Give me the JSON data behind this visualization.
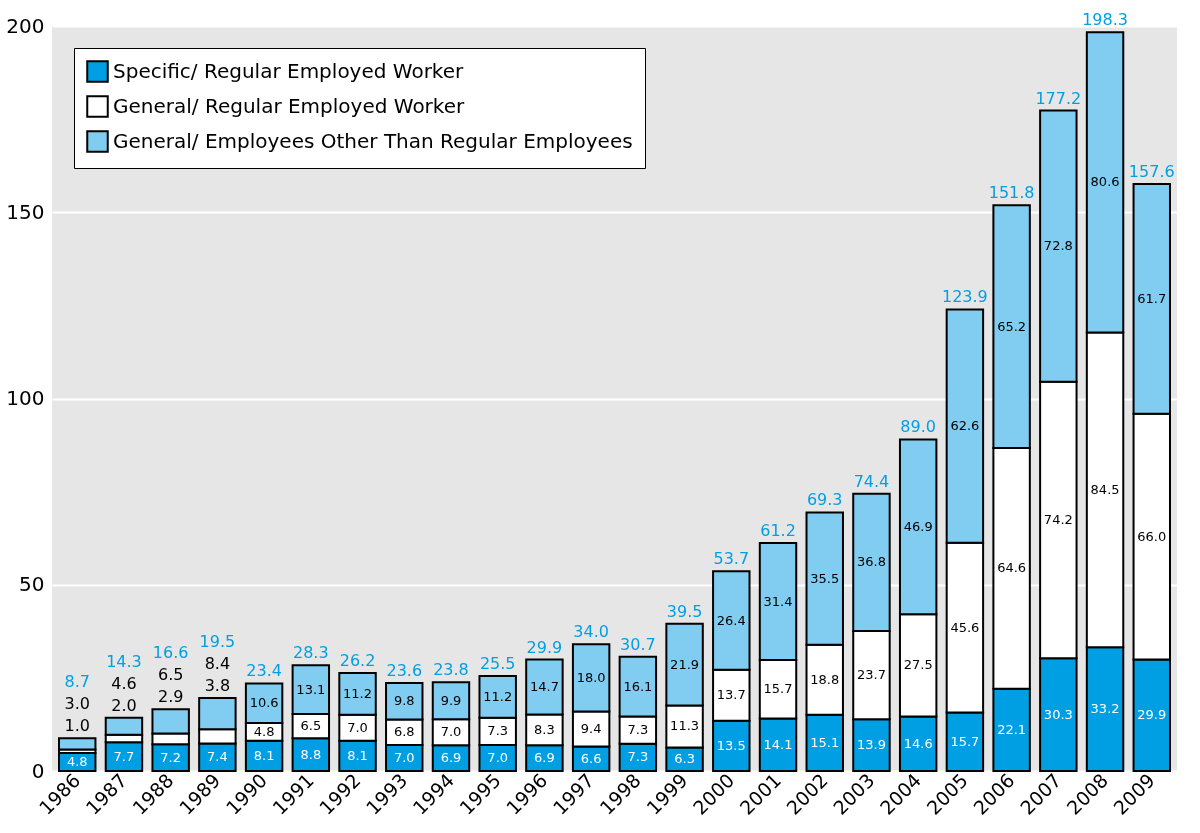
{
  "chart_data": {
    "type": "bar",
    "stacked": true,
    "categories": [
      "1986",
      "1987",
      "1988",
      "1989",
      "1990",
      "1991",
      "1992",
      "1993",
      "1994",
      "1995",
      "1996",
      "1997",
      "1998",
      "1999",
      "2000",
      "2001",
      "2002",
      "2003",
      "2004",
      "2005",
      "2006",
      "2007",
      "2008",
      "2009"
    ],
    "series": [
      {
        "name": "Specific/ Regular Employed Worker",
        "color": "#009fe3",
        "values": [
          4.8,
          7.7,
          7.2,
          7.4,
          8.1,
          8.8,
          8.1,
          7.0,
          6.9,
          7.0,
          6.9,
          6.6,
          7.3,
          6.3,
          13.5,
          14.1,
          15.1,
          13.9,
          14.6,
          15.7,
          22.1,
          30.3,
          33.2,
          29.9
        ],
        "value_labels": [
          "4.8",
          "7.7",
          "7.2",
          "7.4",
          "8.1",
          "8.8",
          "8.1",
          "7.0",
          "6.9",
          "7.0",
          "6.9",
          "6.6",
          "7.3",
          "6.3",
          "13.5",
          "14.1",
          "15.1",
          "13.9",
          "14.6",
          "15.7",
          "22.1",
          "30.3",
          "33.2",
          "29.9"
        ]
      },
      {
        "name": "General/ Regular Employed Worker",
        "color": "#ffffff",
        "values": [
          1.0,
          2.0,
          2.9,
          3.8,
          4.8,
          6.5,
          7.0,
          6.8,
          7.0,
          7.3,
          8.3,
          9.4,
          7.3,
          11.3,
          13.7,
          15.7,
          18.8,
          23.7,
          27.5,
          45.6,
          64.6,
          74.2,
          84.5,
          66.0
        ],
        "value_labels": [
          "1.0",
          "2.0",
          "2.9",
          "3.8",
          "4.8",
          "6.5",
          "7.0",
          "6.8",
          "7.0",
          "7.3",
          "8.3",
          "9.4",
          "7.3",
          "11.3",
          "13.7",
          "15.7",
          "18.8",
          "23.7",
          "27.5",
          "45.6",
          "64.6",
          "74.2",
          "84.5",
          "66.0"
        ]
      },
      {
        "name": "General/ Employees Other Than Regular Employees",
        "color": "#80cdf1",
        "values": [
          3.0,
          4.6,
          6.5,
          8.4,
          10.6,
          13.1,
          11.2,
          9.8,
          9.9,
          11.2,
          14.7,
          18.0,
          16.1,
          21.9,
          26.4,
          31.4,
          35.5,
          36.8,
          46.9,
          62.6,
          65.2,
          72.8,
          80.6,
          61.7
        ],
        "value_labels": [
          "3.0",
          "4.6",
          "6.5",
          "8.4",
          "10.6",
          "13.1",
          "11.2",
          "9.8",
          "9.9",
          "11.2",
          "14.7",
          "18.0",
          "16.1",
          "21.9",
          "26.4",
          "31.4",
          "35.5",
          "36.8",
          "46.9",
          "62.6",
          "65.2",
          "72.8",
          "80.6",
          "61.7"
        ]
      }
    ],
    "totals": [
      "8.7",
      "14.3",
      "16.6",
      "19.5",
      "23.4",
      "28.3",
      "26.2",
      "23.6",
      "23.8",
      "25.5",
      "29.9",
      "34.0",
      "30.7",
      "39.5",
      "53.7",
      "61.2",
      "69.3",
      "74.4",
      "89.0",
      "123.9",
      "151.8",
      "177.2",
      "198.3",
      "157.6"
    ],
    "ylim": [
      0,
      200
    ],
    "yticks": [
      0,
      50,
      100,
      150,
      200
    ],
    "grid": "y",
    "legend": "top left"
  }
}
